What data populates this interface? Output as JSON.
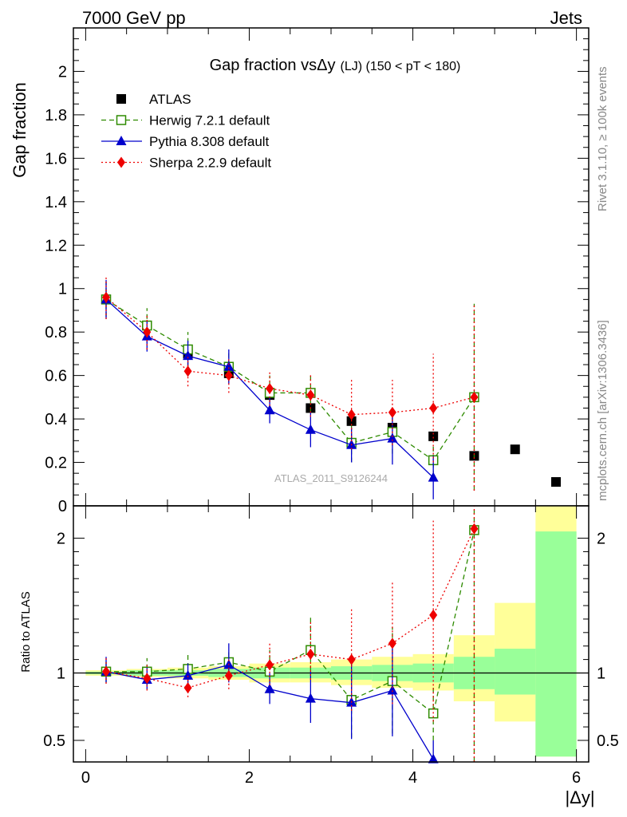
{
  "header": {
    "energy": "7000 GeV pp",
    "category": "Jets",
    "title_prefix": "Gap fraction vs",
    "title_var": "Δy",
    "title_suffix": "(LJ) (150 < pT < 180)"
  },
  "side": {
    "rivet": "Rivet 3.1.10, ≥ 100k events",
    "mcplots": "mcplots.cern.ch [arXiv:1306.3436]"
  },
  "watermark": "ATLAS_2011_S9126244",
  "colors": {
    "data": "#000000",
    "herwig": "#2e8b00",
    "pythia": "#0000cc",
    "sherpa": "#ee0000",
    "band_inner": "#99ff99",
    "band_outer": "#ffff99"
  },
  "chart_data": [
    {
      "type": "scatter",
      "name": "main",
      "ylabel": "Gap fraction",
      "xlim": [
        -0.15,
        6.15
      ],
      "ylim": [
        0,
        2.2
      ],
      "yticks": [
        0,
        0.2,
        0.4,
        0.6,
        0.8,
        1,
        1.2,
        1.4,
        1.6,
        1.8,
        2
      ],
      "ytick_labels": [
        "0",
        "0.2",
        "0.4",
        "0.6",
        "0.8",
        "1",
        "1.2",
        "1.4",
        "1.6",
        "1.8",
        "2"
      ],
      "legend": [
        "ATLAS",
        "Herwig 7.2.1 default",
        "Pythia 8.308 default",
        "Sherpa 2.2.9 default"
      ],
      "legend_position": "top-left",
      "series": [
        {
          "name": "ATLAS",
          "key": "data",
          "x": [
            0.25,
            0.75,
            1.25,
            1.75,
            2.25,
            2.75,
            3.25,
            3.75,
            4.25,
            4.75,
            5.25,
            5.75
          ],
          "y": [
            0.95,
            0.83,
            0.7,
            0.61,
            0.51,
            0.45,
            0.39,
            0.36,
            0.32,
            0.23,
            0.26,
            0.11
          ]
        },
        {
          "name": "Herwig 7.2.1 default",
          "key": "herwig",
          "x": [
            0.25,
            0.75,
            1.25,
            1.75,
            2.25,
            2.75,
            3.25,
            3.75,
            4.25,
            4.75
          ],
          "y": [
            0.95,
            0.83,
            0.72,
            0.64,
            0.52,
            0.52,
            0.29,
            0.34,
            0.21,
            0.5
          ],
          "err": [
            0.08,
            0.08,
            0.08,
            0.07,
            0.08,
            0.09,
            0.09,
            0.1,
            0.07,
            0.43
          ]
        },
        {
          "name": "Pythia 8.308 default",
          "key": "pythia",
          "x": [
            0.25,
            0.75,
            1.25,
            1.75,
            2.25,
            2.75,
            3.25,
            3.75,
            4.25
          ],
          "y": [
            0.95,
            0.78,
            0.69,
            0.64,
            0.44,
            0.35,
            0.28,
            0.31,
            0.13
          ],
          "err": [
            0.09,
            0.07,
            0.07,
            0.08,
            0.06,
            0.08,
            0.08,
            0.12,
            0.1
          ]
        },
        {
          "name": "Sherpa 2.2.9 default",
          "key": "sherpa",
          "x": [
            0.25,
            0.75,
            1.25,
            1.75,
            2.25,
            2.75,
            3.25,
            3.75,
            4.25,
            4.75
          ],
          "y": [
            0.96,
            0.8,
            0.62,
            0.6,
            0.54,
            0.51,
            0.42,
            0.43,
            0.45,
            0.5
          ],
          "err": [
            0.1,
            0.08,
            0.07,
            0.08,
            0.08,
            0.1,
            0.16,
            0.15,
            0.25,
            0.43
          ]
        }
      ]
    },
    {
      "type": "scatter",
      "name": "ratio",
      "ylabel": "Ratio to ATLAS",
      "xlabel": "|Δy|",
      "xlim": [
        -0.15,
        6.15
      ],
      "ylim": [
        0.34,
        2.24
      ],
      "xticks": [
        0,
        2,
        4,
        6
      ],
      "xtick_labels": [
        "0",
        "2",
        "4",
        "6"
      ],
      "yticks": [
        0.5,
        1,
        2
      ],
      "ytick_labels": [
        "0.5",
        "1",
        "2"
      ],
      "bands": {
        "x_edges": [
          0.0,
          0.5,
          1.0,
          1.5,
          2.0,
          2.5,
          3.0,
          3.5,
          4.0,
          4.5,
          5.0,
          5.5,
          6.0
        ],
        "inner_lo": [
          0.99,
          0.98,
          0.98,
          0.97,
          0.96,
          0.96,
          0.95,
          0.94,
          0.93,
          0.88,
          0.84,
          0.38
        ],
        "inner_hi": [
          1.01,
          1.02,
          1.02,
          1.03,
          1.04,
          1.04,
          1.05,
          1.06,
          1.07,
          1.12,
          1.18,
          2.05
        ],
        "outer_lo": [
          0.98,
          0.97,
          0.96,
          0.95,
          0.93,
          0.93,
          0.91,
          0.89,
          0.87,
          0.79,
          0.64,
          0.38
        ],
        "outer_hi": [
          1.02,
          1.03,
          1.04,
          1.05,
          1.07,
          1.08,
          1.1,
          1.12,
          1.14,
          1.28,
          1.52,
          2.24
        ]
      },
      "series": [
        {
          "name": "Herwig 7.2.1 default",
          "key": "herwig",
          "x": [
            0.25,
            0.75,
            1.25,
            1.75,
            2.25,
            2.75,
            3.25,
            3.75,
            4.25,
            4.75
          ],
          "y": [
            1.01,
            1.01,
            1.03,
            1.08,
            1.01,
            1.17,
            0.8,
            0.94,
            0.7,
            2.06
          ],
          "lo": [
            0.93,
            0.91,
            0.92,
            1.0,
            0.86,
            1.02,
            0.52,
            0.55,
            0.5,
            0.34
          ],
          "hi": [
            1.1,
            1.11,
            1.14,
            1.17,
            1.17,
            1.41,
            1.1,
            1.34,
            0.9,
            2.24
          ]
        },
        {
          "name": "Pythia 8.308 default",
          "key": "pythia",
          "x": [
            0.25,
            0.75,
            1.25,
            1.75,
            2.25,
            2.75,
            3.25,
            3.75,
            4.25
          ],
          "y": [
            1.01,
            0.95,
            0.98,
            1.06,
            0.88,
            0.81,
            0.78,
            0.87,
            0.36
          ],
          "lo": [
            0.93,
            0.88,
            0.9,
            0.93,
            0.77,
            0.63,
            0.51,
            0.53,
            0.34
          ],
          "hi": [
            1.12,
            1.04,
            1.07,
            1.22,
            1.0,
            1.01,
            1.07,
            1.23,
            0.5
          ]
        },
        {
          "name": "Sherpa 2.2.9 default",
          "key": "sherpa",
          "x": [
            0.25,
            0.75,
            1.25,
            1.75,
            2.25,
            2.75,
            3.25,
            3.75,
            4.25,
            4.75
          ],
          "y": [
            1.01,
            0.96,
            0.89,
            0.98,
            1.06,
            1.14,
            1.1,
            1.22,
            1.43,
            2.07
          ],
          "lo": [
            0.92,
            0.87,
            0.82,
            0.88,
            0.91,
            0.95,
            0.72,
            0.77,
            0.64,
            0.34
          ],
          "hi": [
            1.11,
            1.06,
            0.99,
            1.1,
            1.23,
            1.38,
            1.49,
            1.67,
            2.13,
            2.24
          ]
        }
      ]
    }
  ]
}
